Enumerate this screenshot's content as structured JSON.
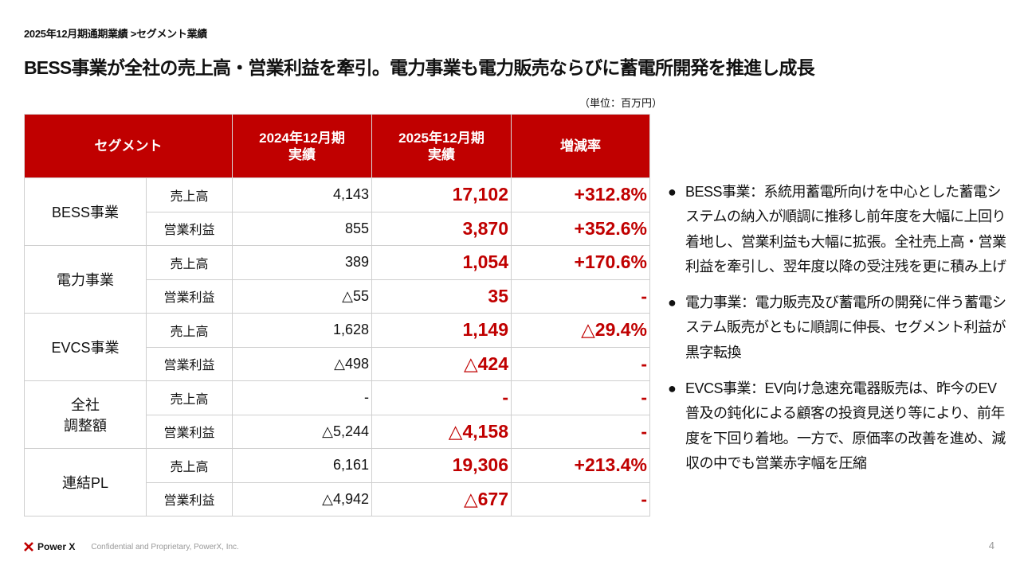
{
  "breadcrumb": "2025年12月期通期業績 >セグメント業績",
  "title": "BESS事業が全社の売上高・営業利益を牽引。電力事業も電力販売ならびに蓄電所開発を推進し成長",
  "unit": "（単位：百万円）",
  "table": {
    "headers": {
      "segment": "セグメント",
      "fy2024": "2024年12月期\n実績",
      "fy2025": "2025年12月期\n実績",
      "change": "増減率"
    },
    "segments": [
      {
        "name": "BESS事業",
        "rows": [
          {
            "item": "売上高",
            "fy2024": "4,143",
            "fy2025": "17,102",
            "change": "+312.8%"
          },
          {
            "item": "営業利益",
            "fy2024": "855",
            "fy2025": "3,870",
            "change": "+352.6%"
          }
        ]
      },
      {
        "name": "電力事業",
        "rows": [
          {
            "item": "売上高",
            "fy2024": "389",
            "fy2025": "1,054",
            "change": "+170.6%"
          },
          {
            "item": "営業利益",
            "fy2024": "△55",
            "fy2025": "35",
            "change": "-"
          }
        ]
      },
      {
        "name": "EVCS事業",
        "rows": [
          {
            "item": "売上高",
            "fy2024": "1,628",
            "fy2025": "1,149",
            "change": "△29.4%"
          },
          {
            "item": "営業利益",
            "fy2024": "△498",
            "fy2025": "△424",
            "change": "-"
          }
        ]
      },
      {
        "name": "全社\n調整額",
        "rows": [
          {
            "item": "売上高",
            "fy2024": "-",
            "fy2025": "-",
            "change": "-"
          },
          {
            "item": "営業利益",
            "fy2024": "△5,244",
            "fy2025": "△4,158",
            "change": "-"
          }
        ]
      },
      {
        "name": "連結PL",
        "rows": [
          {
            "item": "売上高",
            "fy2024": "6,161",
            "fy2025": "19,306",
            "change": "+213.4%"
          },
          {
            "item": "営業利益",
            "fy2024": "△4,942",
            "fy2025": "△677",
            "change": "-"
          }
        ]
      }
    ]
  },
  "bullets": [
    "BESS事業：系統用蓄電所向けを中心とした蓄電システムの納入が順調に推移し前年度を大幅に上回り着地し、営業利益も大幅に拡張。全社売上高・営業利益を牽引し、翌年度以降の受注残を更に積み上げ",
    "電力事業：電力販売及び蓄電所の開発に伴う蓄電システム販売がともに順調に伸長、セグメント利益が黒字転換",
    "EVCS事業：EV向け急速充電器販売は、昨今のEV普及の鈍化による顧客の投資見送り等により、前年度を下回り着地。一方で、原価率の改善を進め、減収の中でも営業赤字幅を圧縮"
  ],
  "footer": {
    "logo": "Power X",
    "confidential": "Confidential and Proprietary, PowerX, Inc.",
    "page": "4"
  },
  "colors": {
    "accent": "#c00000"
  }
}
